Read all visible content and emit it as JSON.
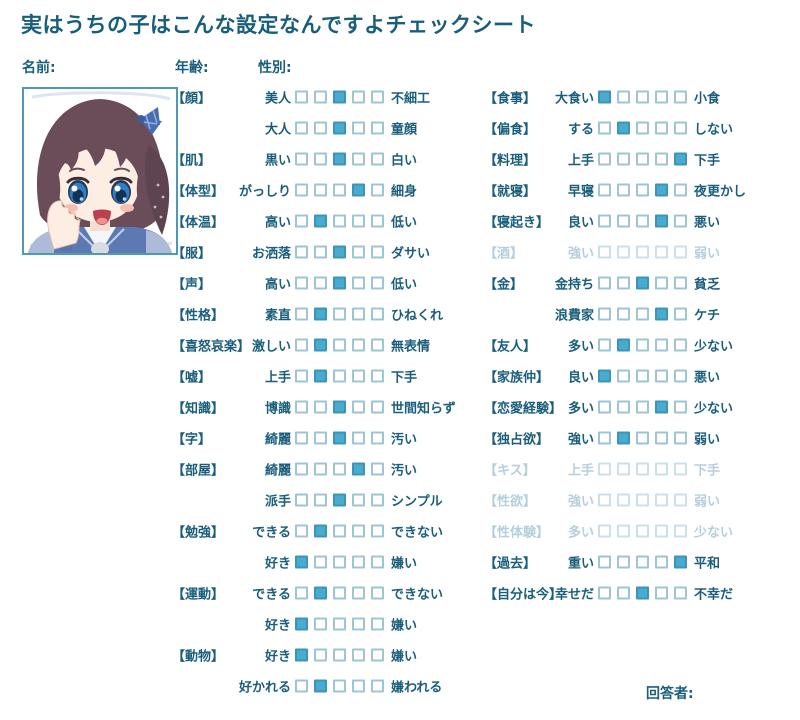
{
  "title": "実はうちの子はこんな設定なんですよチェックシート",
  "labels": {
    "name": "名前:",
    "age": "年齢:",
    "gender": "性別:",
    "respondent": "回答者:"
  },
  "portrait": {
    "description": "anime girl with brown hair, blue eyes and sailor uniform, hand on cheek"
  },
  "colors": {
    "text": "#1a5e7c",
    "checkbox_fill": "#49abce",
    "checkbox_border": "#9fc5d5",
    "disabled_text": "#b5cfdc",
    "portrait_border": "#4e9ab5"
  },
  "scale": 5,
  "columns": [
    {
      "rows": [
        {
          "category": "【顔】",
          "left": "美人",
          "right": "不細工",
          "checked": 3,
          "disabled": false
        },
        {
          "category": "",
          "left": "大人",
          "right": "童顔",
          "checked": 3,
          "disabled": false
        },
        {
          "category": "【肌】",
          "left": "黒い",
          "right": "白い",
          "checked": 3,
          "disabled": false
        },
        {
          "category": "【体型】",
          "left": "がっしり",
          "right": "細身",
          "checked": 4,
          "disabled": false
        },
        {
          "category": "【体温】",
          "left": "高い",
          "right": "低い",
          "checked": 2,
          "disabled": false
        },
        {
          "category": "【服】",
          "left": "お洒落",
          "right": "ダサい",
          "checked": 3,
          "disabled": false
        },
        {
          "category": "【声】",
          "left": "高い",
          "right": "低い",
          "checked": 3,
          "disabled": false
        },
        {
          "category": "【性格】",
          "left": "素直",
          "right": "ひねくれ",
          "checked": 2,
          "disabled": false
        },
        {
          "category": "【喜怒哀楽】",
          "left": "激しい",
          "right": "無表情",
          "checked": 2,
          "disabled": false
        },
        {
          "category": "【嘘】",
          "left": "上手",
          "right": "下手",
          "checked": 2,
          "disabled": false
        },
        {
          "category": "【知識】",
          "left": "博識",
          "right": "世間知らず",
          "checked": 3,
          "disabled": false
        },
        {
          "category": "【字】",
          "left": "綺麗",
          "right": "汚い",
          "checked": 3,
          "disabled": false
        },
        {
          "category": "【部屋】",
          "left": "綺麗",
          "right": "汚い",
          "checked": 4,
          "disabled": false
        },
        {
          "category": "",
          "left": "派手",
          "right": "シンプル",
          "checked": 3,
          "disabled": false
        },
        {
          "category": "【勉強】",
          "left": "できる",
          "right": "できない",
          "checked": 2,
          "disabled": false
        },
        {
          "category": "",
          "left": "好き",
          "right": "嫌い",
          "checked": 1,
          "disabled": false
        },
        {
          "category": "【運動】",
          "left": "できる",
          "right": "できない",
          "checked": 2,
          "disabled": false
        },
        {
          "category": "",
          "left": "好き",
          "right": "嫌い",
          "checked": 1,
          "disabled": false
        },
        {
          "category": "【動物】",
          "left": "好き",
          "right": "嫌い",
          "checked": 1,
          "disabled": false
        },
        {
          "category": "",
          "left": "好かれる",
          "right": "嫌われる",
          "checked": 2,
          "disabled": false
        }
      ]
    },
    {
      "rows": [
        {
          "category": "【食事】",
          "left": "大食い",
          "right": "小食",
          "checked": 1,
          "disabled": false
        },
        {
          "category": "【偏食】",
          "left": "する",
          "right": "しない",
          "checked": 2,
          "disabled": false
        },
        {
          "category": "【料理】",
          "left": "上手",
          "right": "下手",
          "checked": 5,
          "disabled": false
        },
        {
          "category": "【就寝】",
          "left": "早寝",
          "right": "夜更かし",
          "checked": 4,
          "disabled": false
        },
        {
          "category": "【寝起き】",
          "left": "良い",
          "right": "悪い",
          "checked": 4,
          "disabled": false
        },
        {
          "category": "【酒】",
          "left": "強い",
          "right": "弱い",
          "checked": 0,
          "disabled": true
        },
        {
          "category": "【金】",
          "left": "金持ち",
          "right": "貧乏",
          "checked": 3,
          "disabled": false
        },
        {
          "category": "",
          "left": "浪費家",
          "right": "ケチ",
          "checked": 4,
          "disabled": false
        },
        {
          "category": "【友人】",
          "left": "多い",
          "right": "少ない",
          "checked": 2,
          "disabled": false
        },
        {
          "category": "【家族仲】",
          "left": "良い",
          "right": "悪い",
          "checked": 1,
          "disabled": false
        },
        {
          "category": "【恋愛経験】",
          "left": "多い",
          "right": "少ない",
          "checked": 4,
          "disabled": false
        },
        {
          "category": "【独占欲】",
          "left": "強い",
          "right": "弱い",
          "checked": 2,
          "disabled": false
        },
        {
          "category": "【キス】",
          "left": "上手",
          "right": "下手",
          "checked": 0,
          "disabled": true
        },
        {
          "category": "【性欲】",
          "left": "強い",
          "right": "弱い",
          "checked": 0,
          "disabled": true
        },
        {
          "category": "【性体験】",
          "left": "多い",
          "right": "少ない",
          "checked": 0,
          "disabled": true
        },
        {
          "category": "【過去】",
          "left": "重い",
          "right": "平和",
          "checked": 5,
          "disabled": false
        },
        {
          "category": "【自分は今】",
          "left": "幸せだ",
          "right": "不幸だ",
          "checked": 3,
          "disabled": false
        }
      ]
    }
  ]
}
